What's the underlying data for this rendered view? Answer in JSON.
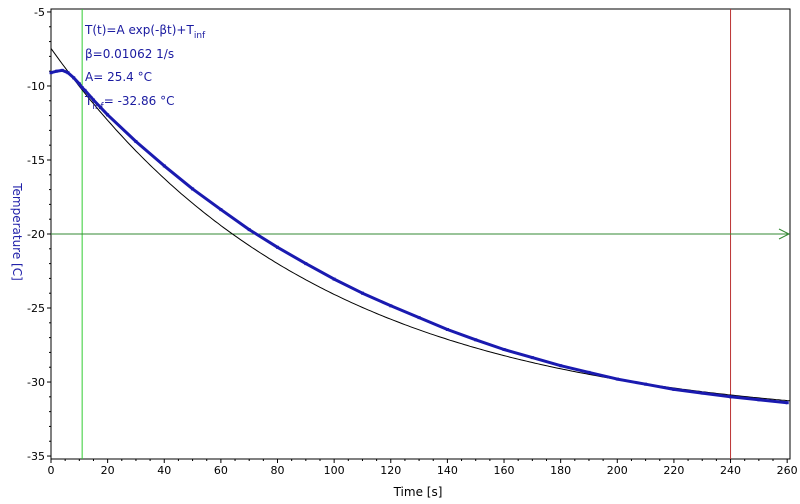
{
  "chart_data": {
    "type": "line",
    "xlabel": "Time [s]",
    "ylabel": "Temperature [C]",
    "xlim": [
      0,
      261
    ],
    "ylim": [
      -35.2,
      -4.8
    ],
    "x_ticks": [
      0,
      20,
      40,
      60,
      80,
      100,
      120,
      140,
      160,
      180,
      200,
      220,
      240,
      260
    ],
    "y_ticks": [
      -5,
      -10,
      -15,
      -20,
      -25,
      -30,
      -35
    ],
    "grid": false,
    "fit": {
      "equation": "T(t)=A exp(-βt)+T",
      "equation_sub": "inf",
      "beta_label": "β=0.01062 1/s",
      "a_label": "A= 25.4 °C",
      "tinf_label": "T",
      "tinf_sub": "inf",
      "tinf_value": "= -32.86 °C",
      "A": 25.4,
      "beta": 0.01062,
      "T_inf": -32.86,
      "x_range": [
        0,
        261
      ]
    },
    "series": [
      {
        "color": "#1a1ab0",
        "points": [
          [
            0,
            -9.1
          ],
          [
            2,
            -9.0
          ],
          [
            4,
            -8.95
          ],
          [
            6,
            -9.1
          ],
          [
            8,
            -9.45
          ],
          [
            10,
            -9.85
          ],
          [
            11,
            -10.1
          ],
          [
            12,
            -10.3
          ],
          [
            15,
            -10.95
          ],
          [
            20,
            -11.95
          ],
          [
            30,
            -13.75
          ],
          [
            40,
            -15.4
          ],
          [
            50,
            -16.95
          ],
          [
            60,
            -18.35
          ],
          [
            70,
            -19.7
          ],
          [
            80,
            -20.9
          ],
          [
            90,
            -22.0
          ],
          [
            100,
            -23.05
          ],
          [
            110,
            -24.0
          ],
          [
            120,
            -24.85
          ],
          [
            130,
            -25.65
          ],
          [
            140,
            -26.45
          ],
          [
            150,
            -27.15
          ],
          [
            160,
            -27.8
          ],
          [
            170,
            -28.35
          ],
          [
            180,
            -28.9
          ],
          [
            190,
            -29.35
          ],
          [
            200,
            -29.8
          ],
          [
            210,
            -30.15
          ],
          [
            220,
            -30.5
          ],
          [
            230,
            -30.75
          ],
          [
            240,
            -31.0
          ],
          [
            250,
            -31.2
          ],
          [
            260,
            -31.4
          ]
        ]
      }
    ],
    "cursors": {
      "vertical_green_x": 11,
      "vertical_red_x": 240,
      "horizontal_green_y": -20
    },
    "colors": {
      "data": "#1a1ab0",
      "fit": "#000000",
      "green_cursor": "#33cc33",
      "horizontal_cursor": "#338833",
      "red_cursor": "#bb3333",
      "ylabel": "#2222aa",
      "xlabel": "#000000"
    }
  }
}
